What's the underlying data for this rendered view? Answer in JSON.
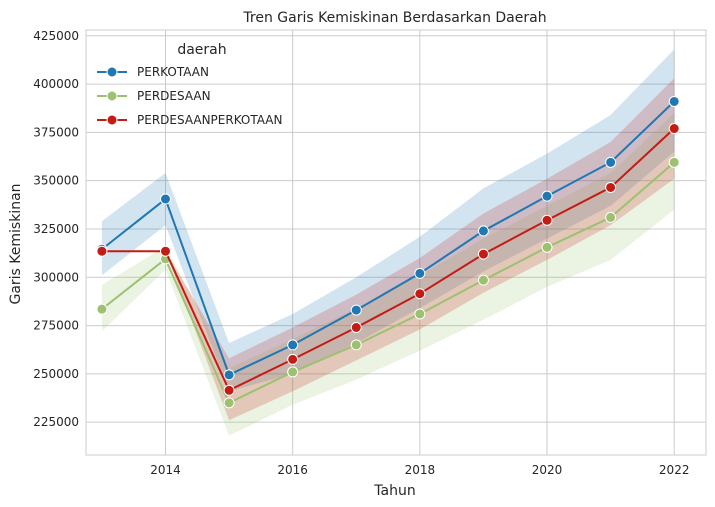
{
  "chart_data": {
    "type": "line",
    "title": "Tren Garis Kemiskinan Berdasarkan Daerah",
    "xlabel": "Tahun",
    "ylabel": "Garis Kemiskinan",
    "xlim": [
      2012.75,
      2022.5
    ],
    "ylim": [
      208000,
      428000
    ],
    "xticks": [
      2014,
      2016,
      2018,
      2020,
      2022
    ],
    "yticks": [
      225000,
      250000,
      275000,
      300000,
      325000,
      350000,
      375000,
      400000,
      425000
    ],
    "grid": true,
    "legend": {
      "title": "daerah",
      "placement": "top-left"
    },
    "x": [
      2013,
      2014,
      2015,
      2016,
      2017,
      2018,
      2019,
      2020,
      2021,
      2022
    ],
    "series": [
      {
        "name": "PERKOTAAN",
        "color": "#1f77b4",
        "values": [
          314500,
          340500,
          249500,
          265000,
          283000,
          302000,
          324000,
          342000,
          359500,
          391000
        ],
        "ci_lower": [
          301000,
          327000,
          241000,
          250000,
          266000,
          284000,
          303000,
          320000,
          337000,
          365000
        ],
        "ci_upper": [
          329000,
          354000,
          266000,
          281000,
          300000,
          321000,
          346000,
          364000,
          384000,
          418000
        ]
      },
      {
        "name": "PERDESAAN",
        "color": "#9cc170",
        "values": [
          283500,
          309500,
          235000,
          251000,
          265000,
          281000,
          298500,
          315500,
          331000,
          359500
        ],
        "ci_lower": [
          272000,
          304000,
          218000,
          234000,
          247000,
          262000,
          278000,
          295000,
          309000,
          335000
        ],
        "ci_upper": [
          296000,
          316000,
          253000,
          268000,
          284000,
          301000,
          320000,
          337000,
          354000,
          385000
        ]
      },
      {
        "name": "PERDESAANPERKOTAAN",
        "color": "#c41b14",
        "values": [
          313500,
          313500,
          241500,
          257500,
          274000,
          291500,
          312000,
          329500,
          346500,
          377000
        ],
        "ci_lower": [
          313500,
          313500,
          226000,
          241000,
          257000,
          273000,
          292000,
          309000,
          327000,
          351000
        ],
        "ci_upper": [
          313500,
          313500,
          258000,
          274000,
          291000,
          310000,
          333000,
          351000,
          370000,
          403000
        ]
      }
    ]
  }
}
